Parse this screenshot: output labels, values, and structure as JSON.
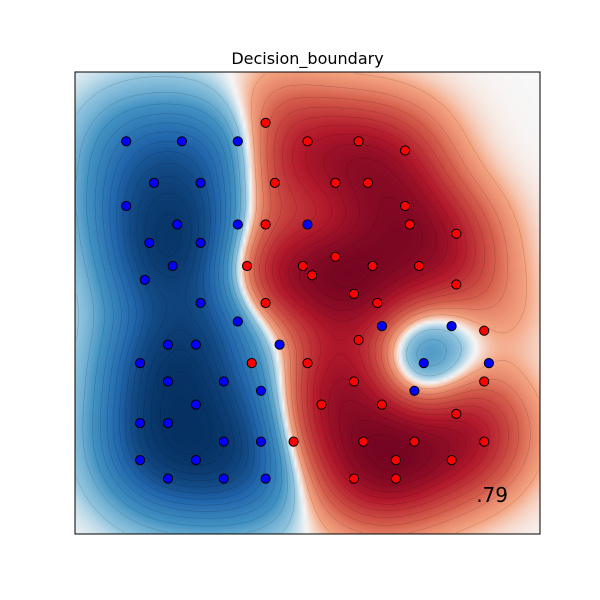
{
  "chart_data": {
    "type": "scatter",
    "title": "Decision_boundary",
    "score_label": ".79",
    "xlabel": "",
    "ylabel": "",
    "xlim": [
      0,
      10
    ],
    "ylim": [
      0,
      10
    ],
    "grid": false,
    "axis_ticks": false,
    "background": "filled-contour decision function (blue = class 0, red = class 1)",
    "colors": {
      "class_0": "#0000ff",
      "class_1": "#ff0000",
      "cmap_blue": "#2166ac",
      "cmap_white": "#f7f7f7",
      "cmap_red": "#b2182b"
    },
    "series": [
      {
        "class": 0,
        "color": "#0000ff",
        "points": [
          [
            1.1,
            8.5
          ],
          [
            2.3,
            8.5
          ],
          [
            3.5,
            8.5
          ],
          [
            1.7,
            7.6
          ],
          [
            2.7,
            7.6
          ],
          [
            1.1,
            7.1
          ],
          [
            2.2,
            6.7
          ],
          [
            3.5,
            6.7
          ],
          [
            1.6,
            6.3
          ],
          [
            2.7,
            6.3
          ],
          [
            2.1,
            5.8
          ],
          [
            1.5,
            5.5
          ],
          [
            2.7,
            5.0
          ],
          [
            3.5,
            4.6
          ],
          [
            2.0,
            4.1
          ],
          [
            2.6,
            4.1
          ],
          [
            4.4,
            4.1
          ],
          [
            1.4,
            3.7
          ],
          [
            2.0,
            3.3
          ],
          [
            3.2,
            3.3
          ],
          [
            4.0,
            3.1
          ],
          [
            2.6,
            2.8
          ],
          [
            1.4,
            2.4
          ],
          [
            2.0,
            2.4
          ],
          [
            3.2,
            2.0
          ],
          [
            4.0,
            2.0
          ],
          [
            1.4,
            1.6
          ],
          [
            2.6,
            1.6
          ],
          [
            2.0,
            1.2
          ],
          [
            3.2,
            1.2
          ],
          [
            4.1,
            1.2
          ],
          [
            5.0,
            6.7
          ],
          [
            6.6,
            4.5
          ],
          [
            8.1,
            4.5
          ],
          [
            7.5,
            3.7
          ],
          [
            8.9,
            3.7
          ],
          [
            7.3,
            3.1
          ]
        ]
      },
      {
        "class": 1,
        "color": "#ff0000",
        "points": [
          [
            4.1,
            8.9
          ],
          [
            5.0,
            8.5
          ],
          [
            6.1,
            8.5
          ],
          [
            7.1,
            8.3
          ],
          [
            4.3,
            7.6
          ],
          [
            5.6,
            7.6
          ],
          [
            6.3,
            7.6
          ],
          [
            7.1,
            7.1
          ],
          [
            4.1,
            6.7
          ],
          [
            7.2,
            6.7
          ],
          [
            8.2,
            6.5
          ],
          [
            3.7,
            5.8
          ],
          [
            4.9,
            5.8
          ],
          [
            5.1,
            5.6
          ],
          [
            5.6,
            6.0
          ],
          [
            6.4,
            5.8
          ],
          [
            7.4,
            5.8
          ],
          [
            8.2,
            5.4
          ],
          [
            6.0,
            5.2
          ],
          [
            6.5,
            5.0
          ],
          [
            4.1,
            5.0
          ],
          [
            8.8,
            4.4
          ],
          [
            6.1,
            4.2
          ],
          [
            3.8,
            3.7
          ],
          [
            5.0,
            3.7
          ],
          [
            6.0,
            3.3
          ],
          [
            8.8,
            3.3
          ],
          [
            6.6,
            2.8
          ],
          [
            5.3,
            2.8
          ],
          [
            8.2,
            2.6
          ],
          [
            4.7,
            2.0
          ],
          [
            6.2,
            2.0
          ],
          [
            7.3,
            2.0
          ],
          [
            8.8,
            2.0
          ],
          [
            6.9,
            1.6
          ],
          [
            8.1,
            1.6
          ],
          [
            6.0,
            1.2
          ],
          [
            6.9,
            1.2
          ]
        ]
      }
    ]
  }
}
